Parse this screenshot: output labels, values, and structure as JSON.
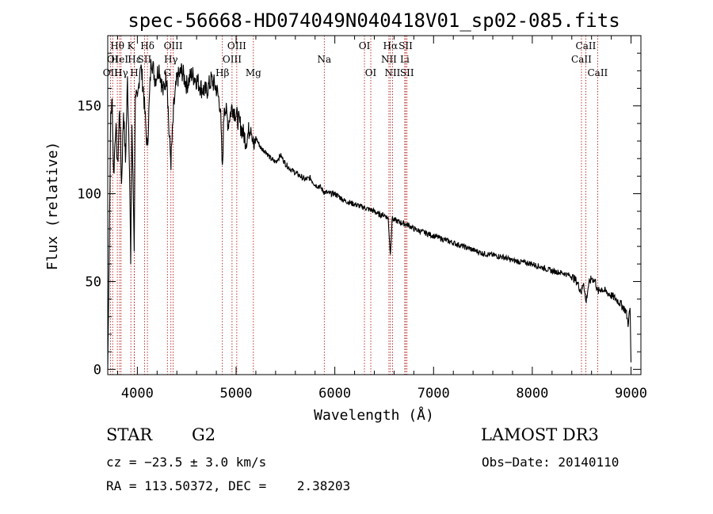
{
  "chart_data": {
    "type": "line",
    "title": "spec-56668-HD074049N040418V01_sp02-085.fits",
    "xlabel": "Wavelength (Å)",
    "ylabel": "Flux (relative)",
    "xlim": [
      3700,
      9100
    ],
    "ylim": [
      -3,
      190
    ],
    "xticks": [
      4000,
      5000,
      6000,
      7000,
      8000,
      9000
    ],
    "yticks": [
      0,
      50,
      100,
      150
    ],
    "series": [
      {
        "name": "flux",
        "x": [
          3700,
          3715,
          3730,
          3745,
          3760,
          3780,
          3800,
          3820,
          3840,
          3860,
          3880,
          3900,
          3920,
          3933,
          3945,
          3960,
          3968,
          3980,
          4000,
          4030,
          4060,
          4101,
          4140,
          4180,
          4220,
          4260,
          4300,
          4320,
          4340,
          4370,
          4400,
          4450,
          4500,
          4550,
          4600,
          4650,
          4700,
          4750,
          4800,
          4840,
          4861,
          4880,
          4920,
          4960,
          5000,
          5050,
          5100,
          5150,
          5183,
          5200,
          5250,
          5300,
          5350,
          5400,
          5450,
          5500,
          5550,
          5600,
          5650,
          5700,
          5750,
          5800,
          5850,
          5890,
          5950,
          6000,
          6050,
          6100,
          6150,
          6200,
          6250,
          6300,
          6350,
          6400,
          6450,
          6500,
          6540,
          6563,
          6580,
          6600,
          6650,
          6700,
          6750,
          6800,
          6900,
          7000,
          7100,
          7200,
          7300,
          7400,
          7500,
          7600,
          7700,
          7800,
          7900,
          8000,
          8100,
          8200,
          8300,
          8400,
          8450,
          8498,
          8520,
          8542,
          8570,
          8600,
          8640,
          8662,
          8700,
          8750,
          8800,
          8850,
          8900,
          8950,
          8970,
          8990,
          9000
        ],
        "y": [
          0,
          70,
          145,
          152,
          110,
          140,
          115,
          150,
          105,
          148,
          118,
          165,
          120,
          58,
          140,
          95,
          70,
          160,
          150,
          175,
          160,
          125,
          178,
          165,
          172,
          158,
          168,
          135,
          118,
          150,
          165,
          170,
          162,
          168,
          165,
          160,
          158,
          165,
          160,
          150,
          112,
          152,
          140,
          150,
          145,
          138,
          130,
          140,
          125,
          132,
          126,
          124,
          120,
          118,
          122,
          117,
          114,
          112,
          110,
          108,
          109,
          105,
          104,
          101,
          100,
          100,
          98,
          96,
          95,
          94,
          93,
          92,
          91,
          90,
          88,
          88,
          86,
          65,
          86,
          85,
          84,
          83,
          82,
          80,
          78,
          76,
          74,
          72,
          70,
          68,
          66,
          65,
          64,
          62,
          61,
          60,
          58,
          56,
          55,
          53,
          50,
          44,
          50,
          38,
          48,
          52,
          50,
          44,
          46,
          44,
          42,
          40,
          37,
          33,
          26,
          35,
          4
        ]
      }
    ],
    "lines": [
      {
        "name": "OII",
        "wave": 3727,
        "row": 3
      },
      {
        "name": "Hθ",
        "wave": 3797,
        "row": 1
      },
      {
        "name": "OI",
        "wave": 3750,
        "row": 2
      },
      {
        "name": "HeI",
        "wave": 3820,
        "row": 2
      },
      {
        "name": "Hγ",
        "wave": 3835,
        "row": 3
      },
      {
        "name": "K",
        "wave": 3934,
        "row": 1
      },
      {
        "name": "H",
        "wave": 3969,
        "row": 3
      },
      {
        "name": "Hε",
        "wave": 3970,
        "row": 2
      },
      {
        "name": "Hδ",
        "wave": 4102,
        "row": 1
      },
      {
        "name": "SII",
        "wave": 4072,
        "row": 2
      },
      {
        "name": "OIII",
        "wave": 4363,
        "row": 1
      },
      {
        "name": "Hγ",
        "wave": 4340,
        "row": 2
      },
      {
        "name": "G",
        "wave": 4304,
        "row": 3
      },
      {
        "name": "Hβ",
        "wave": 4861,
        "row": 3
      },
      {
        "name": "OIII",
        "wave": 4959,
        "row": 2
      },
      {
        "name": "OIII",
        "wave": 5007,
        "row": 1
      },
      {
        "name": "Mg",
        "wave": 5175,
        "row": 3
      },
      {
        "name": "Na",
        "wave": 5893,
        "row": 2
      },
      {
        "name": "OI",
        "wave": 6300,
        "row": 1
      },
      {
        "name": "OI",
        "wave": 6364,
        "row": 3
      },
      {
        "name": "Hα",
        "wave": 6563,
        "row": 1
      },
      {
        "name": "NII",
        "wave": 6548,
        "row": 2
      },
      {
        "name": "NII",
        "wave": 6584,
        "row": 3
      },
      {
        "name": "SII",
        "wave": 6717,
        "row": 1
      },
      {
        "name": "Li",
        "wave": 6708,
        "row": 2
      },
      {
        "name": "SII",
        "wave": 6731,
        "row": 3
      },
      {
        "name": "CaII",
        "wave": 8542,
        "row": 1
      },
      {
        "name": "CaII",
        "wave": 8498,
        "row": 2
      },
      {
        "name": "CaII",
        "wave": 8662,
        "row": 3
      }
    ]
  },
  "info": {
    "object_type": "STAR",
    "subclass": "G2",
    "survey": "LAMOST DR3",
    "redshift": "cz = −23.5 ± 3.0 km/s",
    "obs_date": "Obs−Date: 20140110",
    "coords": "RA = 113.50372, DEC =    2.38203"
  }
}
